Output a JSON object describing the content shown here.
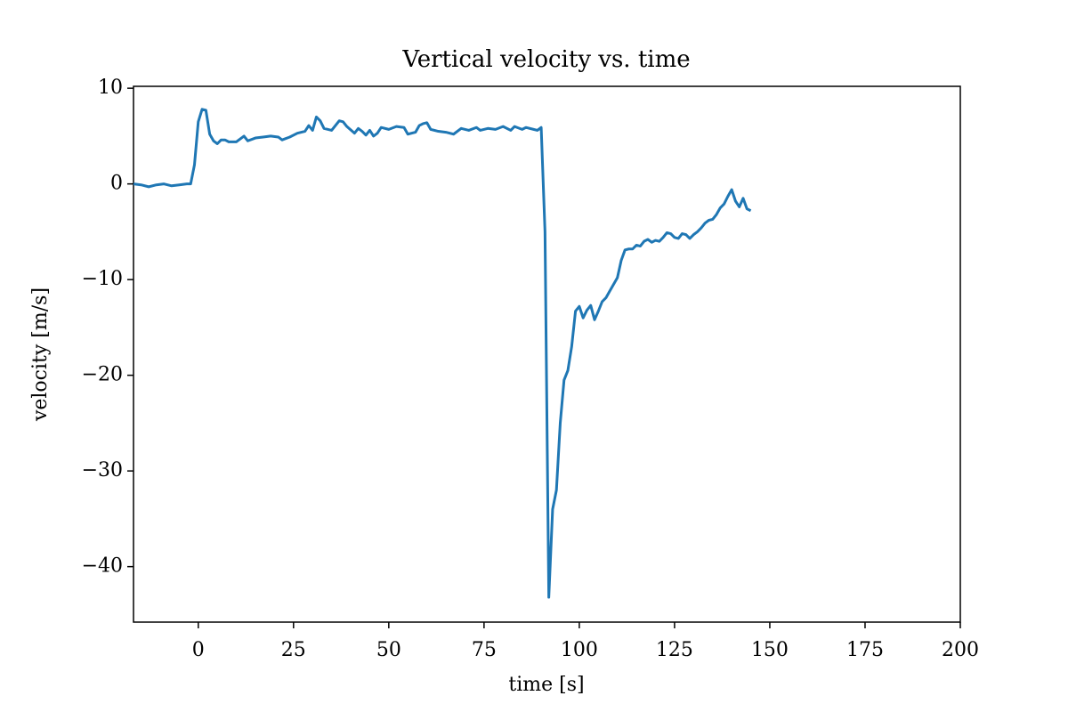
{
  "chart_data": {
    "type": "line",
    "title": "Vertical velocity vs. time",
    "x_label": "time [s]",
    "y_label": "velocity [m/s]",
    "x": [
      -17,
      -15,
      -13,
      -11,
      -9,
      -7,
      -5,
      -3,
      -2,
      -1,
      0,
      1,
      2,
      3,
      4,
      5,
      6,
      7,
      8,
      10,
      12,
      13,
      15,
      17,
      19,
      21,
      22,
      24,
      26,
      28,
      29,
      30,
      31,
      32,
      33,
      35,
      36,
      37,
      38,
      39,
      41,
      42,
      43,
      44,
      45,
      46,
      47,
      48,
      50,
      52,
      54,
      55,
      57,
      58,
      59,
      60,
      61,
      63,
      65,
      67,
      69,
      71,
      73,
      74,
      76,
      78,
      80,
      82,
      83,
      85,
      86,
      88,
      89,
      90,
      91,
      92,
      93,
      94,
      95,
      96,
      97,
      98,
      99,
      100,
      101,
      102,
      103,
      104,
      105,
      106,
      107,
      108,
      109,
      110,
      111,
      112,
      113,
      114,
      115,
      116,
      117,
      118,
      119,
      120,
      121,
      122,
      123,
      124,
      125,
      126,
      127,
      128,
      129,
      130,
      131,
      132,
      133,
      134,
      135,
      136,
      137,
      138,
      139,
      140,
      141,
      142,
      143,
      144,
      145
    ],
    "series": [
      {
        "color": "#1f77b4",
        "values": [
          0.0,
          -0.1,
          -0.3,
          -0.1,
          0.0,
          -0.2,
          -0.1,
          0.0,
          0.0,
          2.0,
          6.5,
          7.8,
          7.7,
          5.2,
          4.5,
          4.2,
          4.6,
          4.6,
          4.4,
          4.4,
          5.0,
          4.5,
          4.8,
          4.9,
          5.0,
          4.9,
          4.6,
          4.9,
          5.3,
          5.5,
          6.1,
          5.6,
          7.0,
          6.6,
          5.8,
          5.6,
          6.1,
          6.6,
          6.5,
          6.0,
          5.3,
          5.8,
          5.5,
          5.1,
          5.6,
          5.0,
          5.3,
          5.9,
          5.7,
          6.0,
          5.9,
          5.2,
          5.4,
          6.1,
          6.3,
          6.4,
          5.7,
          5.5,
          5.4,
          5.2,
          5.8,
          5.6,
          5.9,
          5.6,
          5.8,
          5.7,
          6.0,
          5.6,
          6.0,
          5.7,
          5.9,
          5.7,
          5.6,
          5.9,
          -5,
          -43.2,
          -34,
          -32,
          -25,
          -20.5,
          -19.5,
          -17,
          -13.3,
          -12.8,
          -14,
          -13.2,
          -12.7,
          -14.2,
          -13.3,
          -12.3,
          -11.9,
          -11.2,
          -10.5,
          -9.8,
          -8,
          -6.9,
          -6.8,
          -6.8,
          -6.4,
          -6.5,
          -6.0,
          -5.8,
          -6.1,
          -5.9,
          -6.0,
          -5.6,
          -5.1,
          -5.2,
          -5.6,
          -5.7,
          -5.2,
          -5.3,
          -5.7,
          -5.3,
          -5.0,
          -4.6,
          -4.1,
          -3.8,
          -3.7,
          -3.2,
          -2.5,
          -2.1,
          -1.3,
          -0.6,
          -1.8,
          -2.4,
          -1.5,
          -2.6,
          -2.8
        ]
      }
    ],
    "xlim": [
      -17,
      200
    ],
    "xticks": [
      0,
      25,
      50,
      75,
      100,
      125,
      150,
      175,
      200
    ],
    "ylim": [
      -45.8,
      10.2
    ],
    "yticks": [
      {
        "value": -40,
        "label": "−40"
      },
      {
        "value": -30,
        "label": "−30"
      },
      {
        "value": -20,
        "label": "−20"
      },
      {
        "value": -10,
        "label": "−10"
      },
      0,
      10
    ],
    "grid": false
  }
}
